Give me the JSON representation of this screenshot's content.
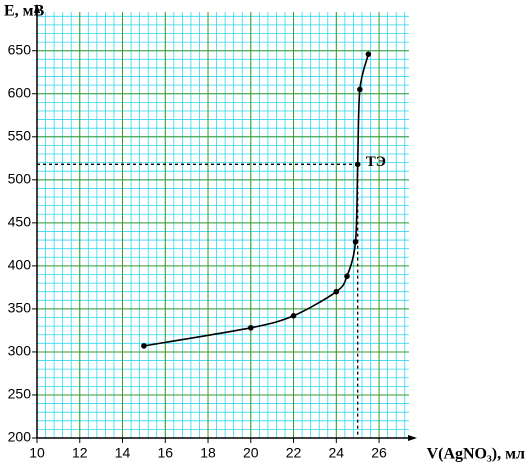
{
  "chart_data": {
    "type": "line",
    "x_label": "V(AgNO₃), мл",
    "y_label": "E, мВ",
    "x": [
      15,
      20,
      22,
      24,
      24.5,
      24.9,
      25,
      25.1,
      25.5
    ],
    "series": [
      {
        "color": "#000000",
        "values": [
          307,
          328,
          342,
          370,
          388,
          428,
          518,
          605,
          646
        ]
      }
    ],
    "xlim": [
      10,
      27.4
    ],
    "ylim": [
      200,
      695
    ],
    "xticks": [
      10,
      12,
      14,
      16,
      18,
      20,
      22,
      24,
      26
    ],
    "yticks": [
      200,
      250,
      300,
      350,
      400,
      450,
      500,
      550,
      600,
      650
    ],
    "grid": true,
    "annotations": [
      {
        "text": "ТЭ",
        "x": 25,
        "y": 518
      }
    ]
  }
}
